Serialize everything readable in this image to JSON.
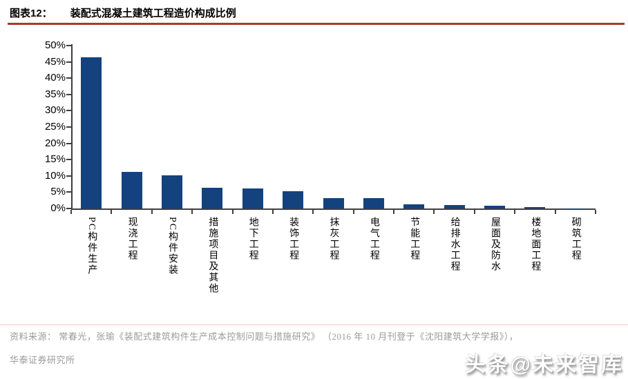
{
  "header": {
    "figure_label": "图表12：",
    "title": "装配式混凝土建筑工程造价构成比例"
  },
  "chart_data": {
    "type": "bar",
    "title": "装配式混凝土建筑工程造价构成比例",
    "categories": [
      "PC构件生产",
      "现浇工程",
      "PC构件安装",
      "措施项目及其他",
      "地下工程",
      "装饰工程",
      "抹灰工程",
      "电气工程",
      "节能工程",
      "给排水工程",
      "屋面及防水",
      "楼地面工程",
      "砌筑工程"
    ],
    "values": [
      46.5,
      11.3,
      10.2,
      6.3,
      6.2,
      5.2,
      3.2,
      3.2,
      1.3,
      1.0,
      0.8,
      0.5,
      0.1
    ],
    "unit": "%",
    "ylim": [
      0,
      50
    ],
    "ytick_step": 5,
    "ytick_labels": [
      "0%",
      "5%",
      "10%",
      "15%",
      "20%",
      "25%",
      "30%",
      "35%",
      "40%",
      "45%",
      "50%"
    ],
    "xlabel": "",
    "ylabel": "",
    "grid": false,
    "legend_position": "none",
    "bar_color": "#13427E"
  },
  "footer": {
    "source_line1": "资料来源： 常春光，张瑜《装配式建筑构件生产成本控制问题与措施研究》 （2016 年 10 月刊登于《沈阳建筑大学学报》），",
    "source_line2": "华泰证券研究所"
  },
  "watermark": {
    "text": "头条@未来智库"
  },
  "colors": {
    "accent_rule": "#A9392B",
    "bar": "#13427E",
    "axis": "#3f3f3f",
    "footer_rule": "#F5C6BD",
    "footer_text": "#9b9b9b"
  }
}
